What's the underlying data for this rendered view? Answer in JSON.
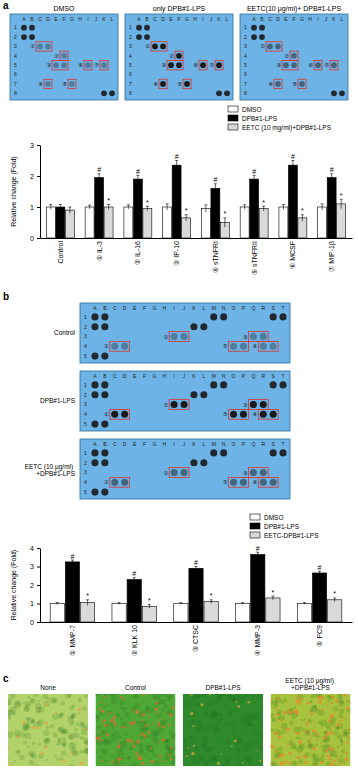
{
  "panel_labels": [
    "a",
    "b",
    "c"
  ],
  "arrays_a": {
    "titles": [
      "DMSO",
      "only DPB#1-LPS",
      "EETC(10 μg/ml)+ DPB#1-LPS"
    ],
    "columns": [
      "A",
      "B",
      "C",
      "D",
      "E",
      "F",
      "G",
      "H",
      "I",
      "J",
      "K",
      "L"
    ],
    "rows": [
      "1",
      "2",
      "3",
      "4",
      "5",
      "6",
      "7",
      "8"
    ],
    "boxes": [
      "①",
      "②",
      "③",
      "④",
      "⑤",
      "⑥",
      "⑦"
    ]
  },
  "arrays_b": {
    "titles": [
      "Control",
      "DPB#1-LPS",
      "EETC (10 μg/ml) +DPB#1-LPS"
    ],
    "columns": [
      "A",
      "B",
      "C",
      "D",
      "E",
      "F",
      "G",
      "H",
      "I",
      "J",
      "K",
      "L",
      "M",
      "N",
      "O",
      "P",
      "Q",
      "R",
      "S",
      "T"
    ],
    "rows": [
      "1",
      "2",
      "3",
      "4",
      "5"
    ],
    "boxes": [
      "①",
      "②",
      "③",
      "④",
      "⑤"
    ]
  },
  "images_c": {
    "titles": [
      "None",
      "Control",
      "DPB#1-LPS",
      "EETC (10 μg/ml) +DPB#1-LPS"
    ]
  },
  "chart_data": [
    {
      "type": "bar",
      "y_label": "Relative change (Fold)",
      "categories": [
        "Control",
        "① IL-3",
        "② IL-16",
        "③ IP-10",
        "④ sTNFRI",
        "⑤ sTNFRII",
        "⑥ MCSF",
        "⑦ MIP-1β"
      ],
      "ylim": [
        0,
        3
      ],
      "yticks": [
        0,
        1,
        2,
        3
      ],
      "legend": "top-right",
      "series": [
        {
          "name": "DMSO",
          "color": "#ffffff",
          "values": [
            1,
            1,
            1,
            1,
            0.95,
            1,
            1,
            1
          ],
          "errors": [
            0.08,
            0.06,
            0.07,
            0.1,
            0.12,
            0.07,
            0.08,
            0.1
          ]
        },
        {
          "name": "DPB#1-LPS",
          "color": "#000000",
          "values": [
            1,
            1.95,
            1.9,
            2.35,
            1.6,
            1.9,
            2.35,
            1.95
          ],
          "errors": [
            0.08,
            0.12,
            0.12,
            0.15,
            0.15,
            0.12,
            0.15,
            0.12
          ],
          "significance": [
            null,
            "#",
            "#",
            "#",
            "#",
            "#",
            "#",
            "#"
          ]
        },
        {
          "name": "EETC (10 mg/ml)+DPB#1-LPS",
          "color": "#d9d9d9",
          "values": [
            0.9,
            1.0,
            0.95,
            0.65,
            0.5,
            0.95,
            0.65,
            1.1
          ],
          "errors": [
            0.1,
            0.08,
            0.07,
            0.1,
            0.15,
            0.08,
            0.1,
            0.15
          ],
          "significance": [
            null,
            "*",
            "*",
            "*",
            "*",
            "*",
            "*",
            "*"
          ]
        }
      ]
    },
    {
      "type": "bar",
      "y_label": "Relative change (Fold)",
      "categories": [
        "① MMP-7",
        "② KLK 10",
        "③ CTSC",
        "④ MMP-3",
        "⑤ PC9"
      ],
      "ylim": [
        0,
        4
      ],
      "yticks": [
        0,
        1,
        2,
        3,
        4
      ],
      "legend": "top-right",
      "series": [
        {
          "name": "DMSO",
          "color": "#ffffff",
          "values": [
            1,
            1,
            1,
            1,
            1
          ],
          "errors": [
            0.05,
            0.05,
            0.05,
            0.05,
            0.05
          ]
        },
        {
          "name": "DPB#1-LPS",
          "color": "#000000",
          "values": [
            3.25,
            2.3,
            2.9,
            3.65,
            2.65
          ],
          "errors": [
            0.1,
            0.1,
            0.1,
            0.12,
            0.1
          ],
          "significance": [
            "#",
            "#",
            "#",
            "#",
            "#"
          ]
        },
        {
          "name": "EETC-DPB#1-LPS",
          "color": "#d9d9d9",
          "values": [
            1.05,
            0.85,
            1.1,
            1.3,
            1.2
          ],
          "errors": [
            0.15,
            0.1,
            0.1,
            0.1,
            0.1
          ],
          "significance": [
            "*",
            "*",
            "*",
            "*",
            "*"
          ]
        }
      ]
    }
  ]
}
